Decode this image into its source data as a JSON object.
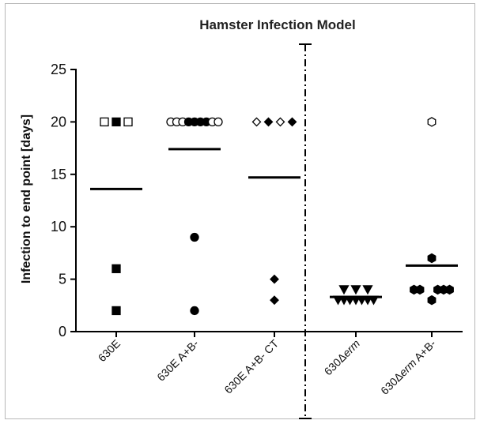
{
  "chart_data": {
    "type": "scatter",
    "title": "Hamster Infection  Model",
    "ylabel": "Infection to end point [days]",
    "xlabel": "",
    "ylim": [
      0,
      25
    ],
    "yticks": [
      0,
      5,
      10,
      15,
      20,
      25
    ],
    "grid": false,
    "categories": [
      {
        "parts": [
          {
            "text": "630E",
            "italic": false
          }
        ]
      },
      {
        "parts": [
          {
            "text": "630E A+B-",
            "italic": false
          }
        ]
      },
      {
        "parts": [
          {
            "text": "630E A+B- CT",
            "italic": false
          }
        ]
      },
      {
        "parts": [
          {
            "text": "630Δ",
            "italic": false
          },
          {
            "text": "erm",
            "italic": true
          }
        ]
      },
      {
        "parts": [
          {
            "text": "630Δ",
            "italic": false
          },
          {
            "text": "erm",
            "italic": true
          },
          {
            "text": " A+B-",
            "italic": false
          }
        ]
      }
    ],
    "series": [
      {
        "marker": "square",
        "points": [
          {
            "dx": -2,
            "y": 20,
            "filled": false
          },
          {
            "dx": 0,
            "y": 20,
            "filled": true
          },
          {
            "dx": 2,
            "y": 20,
            "filled": false
          },
          {
            "dx": 0,
            "y": 6,
            "filled": true
          },
          {
            "dx": 0,
            "y": 2,
            "filled": true
          }
        ],
        "mean": 13.6
      },
      {
        "marker": "circle",
        "points": [
          {
            "dx": -4,
            "y": 20,
            "filled": false
          },
          {
            "dx": -3,
            "y": 20,
            "filled": false
          },
          {
            "dx": -2,
            "y": 20,
            "filled": false
          },
          {
            "dx": -1,
            "y": 20,
            "filled": true
          },
          {
            "dx": 0,
            "y": 20,
            "filled": true
          },
          {
            "dx": 1,
            "y": 20,
            "filled": true
          },
          {
            "dx": 2,
            "y": 20,
            "filled": true
          },
          {
            "dx": 3,
            "y": 20,
            "filled": false
          },
          {
            "dx": 4,
            "y": 20,
            "filled": false
          },
          {
            "dx": 0,
            "y": 9,
            "filled": true
          },
          {
            "dx": 0,
            "y": 2,
            "filled": true
          }
        ],
        "mean": 17.4
      },
      {
        "marker": "diamond",
        "points": [
          {
            "dx": -3,
            "y": 20,
            "filled": false
          },
          {
            "dx": -1,
            "y": 20,
            "filled": true
          },
          {
            "dx": 1,
            "y": 20,
            "filled": false
          },
          {
            "dx": 3,
            "y": 20,
            "filled": true
          },
          {
            "dx": 0,
            "y": 5,
            "filled": true
          },
          {
            "dx": 0,
            "y": 3,
            "filled": true
          }
        ],
        "mean": 14.7
      },
      {
        "marker": "triangle-down",
        "points": [
          {
            "dx": -2,
            "y": 4,
            "filled": true
          },
          {
            "dx": 0,
            "y": 4,
            "filled": true
          },
          {
            "dx": 2,
            "y": 4,
            "filled": true
          },
          {
            "dx": -3,
            "y": 3,
            "filled": true
          },
          {
            "dx": -2,
            "y": 3,
            "filled": true
          },
          {
            "dx": -1,
            "y": 3,
            "filled": true
          },
          {
            "dx": 0,
            "y": 3,
            "filled": true
          },
          {
            "dx": 1,
            "y": 3,
            "filled": true
          },
          {
            "dx": 2,
            "y": 3,
            "filled": true
          },
          {
            "dx": 3,
            "y": 3,
            "filled": true
          }
        ],
        "mean": 3.3
      },
      {
        "marker": "hexagon",
        "points": [
          {
            "dx": 0,
            "y": 20,
            "filled": false
          },
          {
            "dx": 0,
            "y": 7,
            "filled": true
          },
          {
            "dx": -3,
            "y": 4,
            "filled": true
          },
          {
            "dx": -2,
            "y": 4,
            "filled": true
          },
          {
            "dx": 1,
            "y": 4,
            "filled": true
          },
          {
            "dx": 2,
            "y": 4,
            "filled": true
          },
          {
            "dx": 3,
            "y": 4,
            "filled": true
          },
          {
            "dx": 0,
            "y": 3,
            "filled": true
          }
        ],
        "mean": 6.3
      }
    ]
  }
}
